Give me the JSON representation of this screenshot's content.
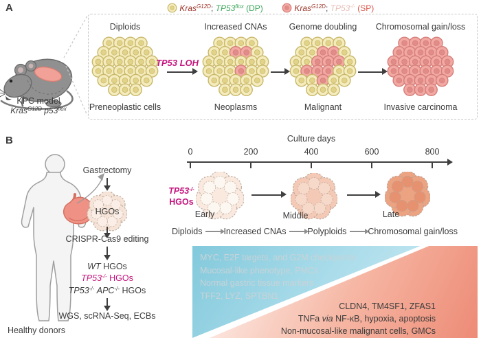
{
  "panelA": {
    "label": "A",
    "legend": {
      "dp": {
        "g1": "Kras",
        "g1s": "G12D",
        "sep": "; ",
        "g2": "TP53",
        "g2s": "flox",
        "tag": " (DP)"
      },
      "sp": {
        "g1": "Kras",
        "g1s": "G12D",
        "sep": "; ",
        "g2": "TP53",
        "g2s": "-/-",
        "tag": " (SP)"
      }
    },
    "mouse": {
      "line1": "KPC model",
      "gene1": "Kras",
      "gene1_sup": "G12D",
      "gene2": "p53",
      "gene2_sup": "flox"
    },
    "arrow_label": "TP53 LOH",
    "stages": [
      {
        "top": "Diploids",
        "bottom": "Preneoplastic cells",
        "cells": [
          "YYYY",
          "YYYYY",
          "YYYYYY",
          "YYYYYY",
          "YYYYY",
          "YYY"
        ]
      },
      {
        "top": "Increased CNAs",
        "bottom": "Neoplasms",
        "cells": [
          "YYYY",
          "YYPPY",
          "YYYYYY",
          "YYYPYY",
          "YYYYY",
          "YYY"
        ]
      },
      {
        "top": "Genome doubling",
        "bottom": "Malignant",
        "cells": [
          "YYYY",
          "YYPPY",
          "YYPPPY",
          "YPPPYY",
          "YYPYY",
          "YYY"
        ]
      },
      {
        "top": "Chromosomal gain/loss",
        "bottom": "Invasive carcinoma",
        "cells": [
          "PPPP",
          "PPPPP",
          "PPPPPP",
          "PPPPPP",
          "PPPPP",
          "PPP"
        ]
      }
    ]
  },
  "panelB": {
    "label": "B",
    "donor_caption": "Healthy donors",
    "flow": {
      "step1": "Gastrectomy",
      "organoid_label": "HGOs",
      "organoid_icon": {
        "fill": "#f6e4d8",
        "inner": "#faeee6",
        "stroke": "#bfae9f"
      },
      "step2": "CRISPR-Cas9 editing",
      "genotypes": {
        "wt_gene": "WT",
        "wt_rest": " HGOs",
        "tp53_gene": "TP53",
        "tp53_sup": "-/-",
        "tp53_rest": " HGOs",
        "dko_gene1": "TP53",
        "dko_sup1": "-/-",
        "dko_gene2": "APC",
        "dko_sup2": "-/-",
        "dko_rest": " HGOs"
      },
      "step3": "WGS, scRNA-Seq, ECBs"
    },
    "timeline": {
      "title": "Culture days",
      "ticks": [
        "0",
        "200",
        "400",
        "600",
        "800"
      ]
    },
    "hgo_label": {
      "gene": "TP53",
      "sup": "-/-",
      "line2": "HGOs"
    },
    "organoids": [
      {
        "label": "Early",
        "fill": "#f9e9de",
        "inner": "#fdf7f1",
        "stroke": "#c3b1a4"
      },
      {
        "label": "Middle",
        "fill": "#f4c9b5",
        "inner": "#f7d9ca",
        "stroke": "#bfa99c"
      },
      {
        "label": "Late",
        "fill": "#eca382",
        "inner": "#e69270",
        "stroke": "#b9a396"
      }
    ],
    "progression": [
      "Diploids",
      "Increased CNAs",
      "Polyploids",
      "Chromosomal gain/loss"
    ],
    "gradient": {
      "decreasing": [
        "MYC, E2F targets, and G2M checkpoints",
        "Mucosal-like phenotype, PMCs",
        "Normal gastric tissue markers",
        "TFF2, LYZ, SPTBN1"
      ],
      "increasing_line1": "CLDN4, TM4SF1, ZFAS1",
      "increasing_line2_pre": "TNFa ",
      "increasing_line2_it": "via",
      "increasing_line2_post": " NF-κB, hypoxia, apoptosis",
      "increasing_line3": "Non-mucosal-like malignant cells, GMCs"
    }
  },
  "colors": {
    "yellow_cell": {
      "fill": "#f4ecbd",
      "stroke": "#c9b76a",
      "nucleus": "#e2d38b"
    },
    "pink_cell": {
      "fill": "#f2a8a3",
      "stroke": "#d67f79",
      "nucleus": "#e18c88"
    },
    "magenta": "#c5147d",
    "kras_red": "#9b3328",
    "green": "#3aa558",
    "faded_pink": "#e6bdb8",
    "sp_red": "#d85548",
    "text": "#3b3b3b",
    "gray_arrow": "#8f8f8f",
    "blue_gradient": "#82c9dc",
    "pink_gradient": "#ed8b76"
  }
}
